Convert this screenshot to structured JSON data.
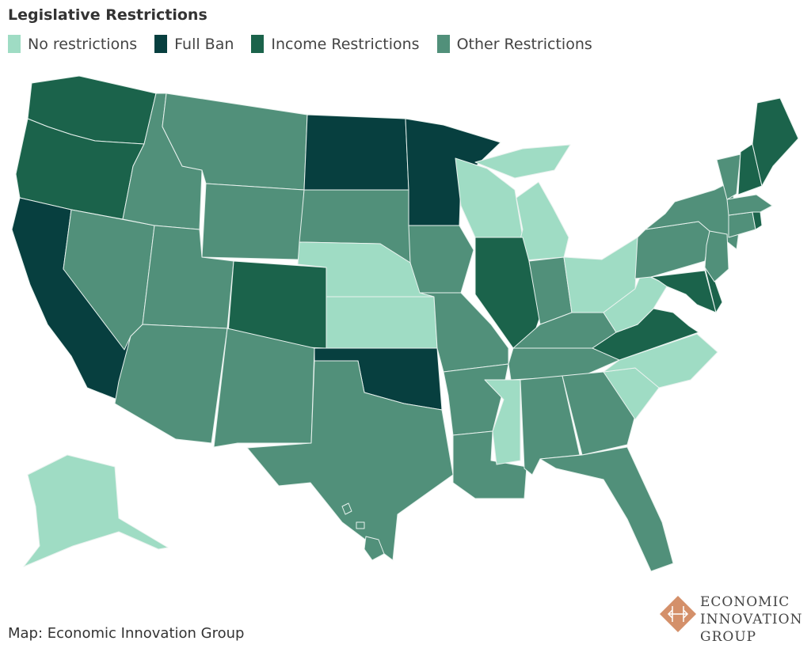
{
  "title": "Legislative Restrictions",
  "legend": [
    {
      "key": "none",
      "label": "No restrictions",
      "color": "#9fdcc4"
    },
    {
      "key": "ban",
      "label": "Full Ban",
      "color": "#073f3f"
    },
    {
      "key": "income",
      "label": "Income Restrictions",
      "color": "#1b634b"
    },
    {
      "key": "other",
      "label": "Other Restrictions",
      "color": "#51907a"
    }
  ],
  "states": {
    "WA": "income",
    "OR": "income",
    "CA": "ban",
    "NV": "other",
    "ID": "other",
    "MT": "other",
    "WY": "other",
    "UT": "other",
    "CO": "income",
    "AZ": "other",
    "NM": "other",
    "ND": "ban",
    "SD": "other",
    "NE": "none",
    "KS": "none",
    "OK": "ban",
    "TX": "other",
    "MN": "ban",
    "IA": "other",
    "MO": "other",
    "AR": "other",
    "LA": "other",
    "WI": "none",
    "MI": "none",
    "IL": "income",
    "IN": "other",
    "OH": "none",
    "KY": "other",
    "TN": "other",
    "MS": "none",
    "AL": "other",
    "GA": "other",
    "FL": "other",
    "SC": "none",
    "NC": "none",
    "VA": "income",
    "WV": "none",
    "PA": "other",
    "NY": "other",
    "MD": "income",
    "DE": "income",
    "NJ": "other",
    "CT": "other",
    "RI": "income",
    "MA": "other",
    "VT": "other",
    "NH": "income",
    "ME": "income",
    "AK": "none",
    "HI": "other"
  },
  "source": "Map: Economic Innovation Group",
  "logo": {
    "lines": [
      "ECONOMIC",
      "INNOVATION",
      "GROUP"
    ],
    "color": "#d4906a"
  }
}
